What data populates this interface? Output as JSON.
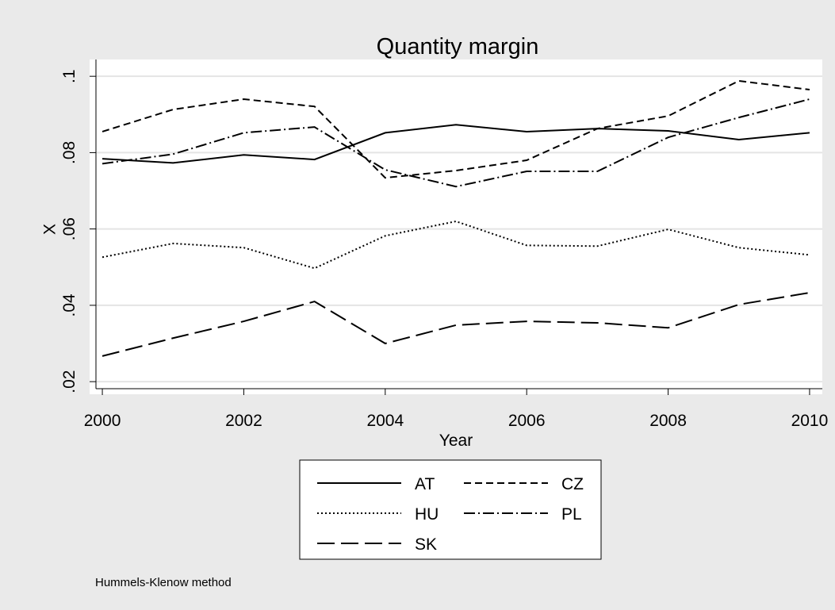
{
  "chart_data": {
    "type": "line",
    "title": "Quantity margin",
    "x_label": "Year",
    "y_label": "X",
    "note": "Hummels-Klenow method",
    "x": [
      2000,
      2001,
      2002,
      2003,
      2004,
      2005,
      2006,
      2007,
      2008,
      2009,
      2010
    ],
    "series": [
      {
        "name": "AT",
        "color": "#000000",
        "dash": "none",
        "values": [
          0.0784,
          0.0773,
          0.0794,
          0.0782,
          0.0852,
          0.0873,
          0.0855,
          0.0863,
          0.0857,
          0.0834,
          0.0852
        ]
      },
      {
        "name": "CZ",
        "color": "#000000",
        "dash": "9,5",
        "values": [
          0.0855,
          0.0913,
          0.094,
          0.0921,
          0.0734,
          0.0753,
          0.078,
          0.0863,
          0.0896,
          0.0988,
          0.0965
        ]
      },
      {
        "name": "HU",
        "color": "#000000",
        "dash": "2,3",
        "values": [
          0.0526,
          0.0562,
          0.0551,
          0.0497,
          0.0582,
          0.062,
          0.0557,
          0.0555,
          0.0599,
          0.0551,
          0.0532
        ]
      },
      {
        "name": "PL",
        "color": "#000000",
        "dash": "14,4,2,4",
        "values": [
          0.0771,
          0.0796,
          0.0852,
          0.0867,
          0.0755,
          0.0711,
          0.0751,
          0.0751,
          0.084,
          0.0892,
          0.094
        ]
      },
      {
        "name": "SK",
        "color": "#000000",
        "dash": "22,8",
        "values": [
          0.0267,
          0.0314,
          0.0358,
          0.041,
          0.03,
          0.0348,
          0.0358,
          0.0354,
          0.0341,
          0.0402,
          0.0433
        ]
      }
    ],
    "xlim": [
      1999.82,
      2010.18
    ],
    "xticks": [
      2000,
      2002,
      2004,
      2006,
      2008,
      2010
    ],
    "ylim": [
      0.0167,
      0.1044
    ],
    "yticks": [
      {
        "value": 0.02,
        "label": ".02"
      },
      {
        "value": 0.04,
        "label": ".04"
      },
      {
        "value": 0.06,
        "label": ".06"
      },
      {
        "value": 0.08,
        "label": ".08"
      },
      {
        "value": 0.1,
        "label": ".1"
      }
    ],
    "grid": true,
    "legend": "bottom"
  }
}
